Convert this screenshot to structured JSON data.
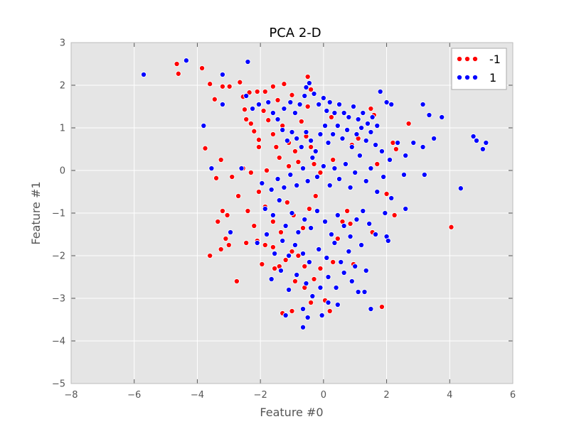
{
  "chart_data": {
    "type": "scatter",
    "title": "PCA 2-D",
    "xlabel": "Feature #0",
    "ylabel": "Feature #1",
    "xlim": [
      -8,
      6
    ],
    "ylim": [
      -5,
      3
    ],
    "xticks": [
      -8,
      -6,
      -4,
      -2,
      0,
      2,
      4,
      6
    ],
    "yticks": [
      -5,
      -4,
      -3,
      -2,
      -1,
      0,
      1,
      2,
      3
    ],
    "xtick_labels": [
      "−8",
      "−6",
      "−4",
      "−2",
      "0",
      "2",
      "4",
      "6"
    ],
    "ytick_labels": [
      "−5",
      "−4",
      "−3",
      "−2",
      "−1",
      "0",
      "1",
      "2",
      "3"
    ],
    "grid": true,
    "legend_position": "top-right",
    "background_color": "#e5e5e5",
    "series": [
      {
        "name": "-1",
        "color": "#ff0000",
        "points": [
          [
            -4.65,
            2.5
          ],
          [
            -4.6,
            2.27
          ],
          [
            -3.85,
            2.4
          ],
          [
            -3.6,
            2.03
          ],
          [
            -3.45,
            1.67
          ],
          [
            -3.2,
            1.97
          ],
          [
            -2.98,
            1.97
          ],
          [
            -2.65,
            2.07
          ],
          [
            -2.55,
            1.73
          ],
          [
            -2.35,
            1.83
          ],
          [
            -2.1,
            1.85
          ],
          [
            -1.85,
            1.85
          ],
          [
            -1.6,
            1.97
          ],
          [
            -1.45,
            1.65
          ],
          [
            -1.25,
            2.03
          ],
          [
            -1.0,
            1.77
          ],
          [
            -0.5,
            2.2
          ],
          [
            -0.4,
            1.9
          ],
          [
            -2.5,
            1.43
          ],
          [
            -2.45,
            1.2
          ],
          [
            -2.3,
            1.1
          ],
          [
            -2.2,
            0.92
          ],
          [
            -2.05,
            0.72
          ],
          [
            -1.9,
            1.4
          ],
          [
            -1.75,
            1.18
          ],
          [
            -1.6,
            0.85
          ],
          [
            -1.5,
            0.55
          ],
          [
            -1.3,
            1.05
          ],
          [
            -1.1,
            0.65
          ],
          [
            -0.9,
            0.45
          ],
          [
            -0.7,
            1.15
          ],
          [
            -0.55,
            0.8
          ],
          [
            -0.4,
            0.55
          ],
          [
            -3.75,
            0.52
          ],
          [
            -3.25,
            0.25
          ],
          [
            -3.4,
            -0.18
          ],
          [
            -2.9,
            -0.15
          ],
          [
            -2.55,
            0.05
          ],
          [
            -2.3,
            -0.05
          ],
          [
            -1.8,
            0.0
          ],
          [
            -1.4,
            0.3
          ],
          [
            -1.1,
            0.1
          ],
          [
            -0.8,
            0.2
          ],
          [
            -0.3,
            0.15
          ],
          [
            -0.1,
            -0.05
          ],
          [
            0.3,
            0.25
          ],
          [
            -2.7,
            -0.6
          ],
          [
            -2.4,
            -0.95
          ],
          [
            -2.2,
            -1.3
          ],
          [
            -2.05,
            -0.5
          ],
          [
            -1.85,
            -0.85
          ],
          [
            -1.6,
            -1.2
          ],
          [
            -1.35,
            -1.45
          ],
          [
            -1.15,
            -0.75
          ],
          [
            -0.95,
            -1.05
          ],
          [
            -0.65,
            -1.35
          ],
          [
            -0.45,
            -0.9
          ],
          [
            -0.25,
            -0.6
          ],
          [
            -3.2,
            -0.95
          ],
          [
            -3.05,
            -1.05
          ],
          [
            -3.35,
            -1.2
          ],
          [
            -3.1,
            -1.6
          ],
          [
            -3.25,
            -1.85
          ],
          [
            -3.0,
            -1.75
          ],
          [
            -3.6,
            -2.0
          ],
          [
            -2.45,
            -1.7
          ],
          [
            -2.1,
            -1.65
          ],
          [
            -1.85,
            -1.75
          ],
          [
            -1.6,
            -1.8
          ],
          [
            -1.4,
            -2.25
          ],
          [
            -1.2,
            -2.1
          ],
          [
            -1.0,
            -1.9
          ],
          [
            -0.8,
            -2.0
          ],
          [
            -0.6,
            -2.25
          ],
          [
            -2.75,
            -2.6
          ],
          [
            -1.95,
            -2.2
          ],
          [
            -1.55,
            -2.3
          ],
          [
            -1.35,
            -2.35
          ],
          [
            -0.9,
            -2.6
          ],
          [
            -0.6,
            -2.75
          ],
          [
            -0.3,
            -2.55
          ],
          [
            -0.1,
            -2.3
          ],
          [
            -1.3,
            -3.35
          ],
          [
            -1.0,
            -3.3
          ],
          [
            -0.4,
            -3.1
          ],
          [
            0.05,
            -3.05
          ],
          [
            0.2,
            -3.3
          ],
          [
            0.3,
            -2.15
          ],
          [
            0.45,
            -1.6
          ],
          [
            0.6,
            -1.2
          ],
          [
            0.75,
            -0.95
          ],
          [
            0.85,
            -1.25
          ],
          [
            0.95,
            -2.2
          ],
          [
            1.55,
            -1.45
          ],
          [
            1.85,
            -3.2
          ],
          [
            2.25,
            -1.05
          ],
          [
            2.0,
            -0.55
          ],
          [
            1.7,
            0.15
          ],
          [
            2.3,
            0.5
          ],
          [
            2.2,
            0.65
          ],
          [
            1.5,
            1.45
          ],
          [
            1.6,
            1.3
          ],
          [
            2.7,
            1.1
          ],
          [
            4.05,
            -1.33
          ],
          [
            0.9,
            0.6
          ],
          [
            1.1,
            0.75
          ],
          [
            0.25,
            1.25
          ],
          [
            -0.5,
            1.5
          ],
          [
            -2.05,
            0.55
          ]
        ]
      },
      {
        "name": "1",
        "color": "#0000ff",
        "points": [
          [
            -5.7,
            2.25
          ],
          [
            -4.35,
            2.58
          ],
          [
            -3.2,
            2.25
          ],
          [
            -2.4,
            2.55
          ],
          [
            -3.8,
            1.05
          ],
          [
            -3.55,
            0.05
          ],
          [
            -3.2,
            1.55
          ],
          [
            -2.45,
            1.75
          ],
          [
            -2.25,
            1.45
          ],
          [
            -2.05,
            1.55
          ],
          [
            -1.75,
            1.6
          ],
          [
            -1.6,
            1.35
          ],
          [
            -1.45,
            1.2
          ],
          [
            -1.25,
            1.45
          ],
          [
            -1.05,
            1.6
          ],
          [
            -0.9,
            1.35
          ],
          [
            -0.75,
            1.55
          ],
          [
            -0.6,
            1.75
          ],
          [
            -0.55,
            1.95
          ],
          [
            -0.45,
            2.05
          ],
          [
            -0.3,
            1.8
          ],
          [
            -0.15,
            1.55
          ],
          [
            0.0,
            1.7
          ],
          [
            0.1,
            1.4
          ],
          [
            0.2,
            1.6
          ],
          [
            0.35,
            1.35
          ],
          [
            0.5,
            1.55
          ],
          [
            0.65,
            1.35
          ],
          [
            0.8,
            1.25
          ],
          [
            0.95,
            1.5
          ],
          [
            1.1,
            1.2
          ],
          [
            1.25,
            1.35
          ],
          [
            1.4,
            1.1
          ],
          [
            1.55,
            1.25
          ],
          [
            1.7,
            1.05
          ],
          [
            1.8,
            1.85
          ],
          [
            2.0,
            1.6
          ],
          [
            2.15,
            1.55
          ],
          [
            3.15,
            1.55
          ],
          [
            3.35,
            1.3
          ],
          [
            3.75,
            1.25
          ],
          [
            -1.3,
            0.95
          ],
          [
            -1.15,
            0.7
          ],
          [
            -1.0,
            0.9
          ],
          [
            -0.85,
            0.75
          ],
          [
            -0.7,
            0.55
          ],
          [
            -0.55,
            0.9
          ],
          [
            -0.4,
            0.7
          ],
          [
            -0.25,
            0.45
          ],
          [
            -0.1,
            0.85
          ],
          [
            0.05,
            1.05
          ],
          [
            0.15,
            0.65
          ],
          [
            0.3,
            0.85
          ],
          [
            0.45,
            1.05
          ],
          [
            0.6,
            0.75
          ],
          [
            0.75,
            0.95
          ],
          [
            0.9,
            0.55
          ],
          [
            1.05,
            0.85
          ],
          [
            1.2,
            1.0
          ],
          [
            1.35,
            0.7
          ],
          [
            1.5,
            0.9
          ],
          [
            1.65,
            0.6
          ],
          [
            1.85,
            0.45
          ],
          [
            2.1,
            0.25
          ],
          [
            2.35,
            0.65
          ],
          [
            2.6,
            0.35
          ],
          [
            2.85,
            0.65
          ],
          [
            3.15,
            0.55
          ],
          [
            3.5,
            0.75
          ],
          [
            4.75,
            0.8
          ],
          [
            4.85,
            0.7
          ],
          [
            5.05,
            0.5
          ],
          [
            5.15,
            0.65
          ],
          [
            -2.6,
            0.05
          ],
          [
            -1.95,
            -0.3
          ],
          [
            -1.65,
            -0.45
          ],
          [
            -1.45,
            -0.2
          ],
          [
            -1.25,
            -0.4
          ],
          [
            -1.05,
            -0.1
          ],
          [
            -0.85,
            -0.35
          ],
          [
            -0.65,
            0.05
          ],
          [
            -0.5,
            -0.25
          ],
          [
            -0.35,
            0.3
          ],
          [
            -0.2,
            -0.15
          ],
          [
            0.0,
            0.1
          ],
          [
            0.2,
            -0.35
          ],
          [
            0.35,
            0.05
          ],
          [
            0.5,
            -0.2
          ],
          [
            0.7,
            0.15
          ],
          [
            0.85,
            -0.4
          ],
          [
            1.0,
            -0.05
          ],
          [
            1.15,
            0.35
          ],
          [
            1.35,
            -0.25
          ],
          [
            1.5,
            0.05
          ],
          [
            1.7,
            -0.5
          ],
          [
            1.9,
            -0.15
          ],
          [
            2.15,
            -0.65
          ],
          [
            2.55,
            -0.1
          ],
          [
            3.2,
            -0.1
          ],
          [
            4.35,
            -0.42
          ],
          [
            -1.85,
            -0.9
          ],
          [
            -1.6,
            -1.05
          ],
          [
            -1.4,
            -0.7
          ],
          [
            -1.2,
            -1.3
          ],
          [
            -1.0,
            -1.0
          ],
          [
            -0.8,
            -1.45
          ],
          [
            -0.6,
            -1.15
          ],
          [
            -0.4,
            -1.35
          ],
          [
            -0.2,
            -0.95
          ],
          [
            0.05,
            -1.2
          ],
          [
            0.25,
            -1.5
          ],
          [
            0.45,
            -1.05
          ],
          [
            0.65,
            -1.3
          ],
          [
            0.85,
            -1.55
          ],
          [
            1.05,
            -1.15
          ],
          [
            1.25,
            -0.95
          ],
          [
            1.45,
            -1.25
          ],
          [
            1.65,
            -1.5
          ],
          [
            1.95,
            -1.0
          ],
          [
            2.6,
            -0.9
          ],
          [
            -2.95,
            -1.45
          ],
          [
            -2.1,
            -1.7
          ],
          [
            -1.8,
            -1.5
          ],
          [
            -1.55,
            -1.95
          ],
          [
            -1.3,
            -1.65
          ],
          [
            -1.1,
            -2.0
          ],
          [
            -0.9,
            -1.75
          ],
          [
            -0.65,
            -1.95
          ],
          [
            -0.45,
            -2.15
          ],
          [
            -0.15,
            -1.85
          ],
          [
            0.1,
            -2.05
          ],
          [
            0.35,
            -1.7
          ],
          [
            0.55,
            -2.15
          ],
          [
            0.8,
            -1.9
          ],
          [
            1.0,
            -2.25
          ],
          [
            1.2,
            -1.75
          ],
          [
            2.0,
            -1.55
          ],
          [
            2.05,
            -1.65
          ],
          [
            -1.65,
            -2.55
          ],
          [
            -1.35,
            -2.35
          ],
          [
            -1.1,
            -2.8
          ],
          [
            -0.85,
            -2.45
          ],
          [
            -0.55,
            -2.65
          ],
          [
            -0.35,
            -2.95
          ],
          [
            -0.1,
            -2.75
          ],
          [
            0.15,
            -2.5
          ],
          [
            0.4,
            -2.75
          ],
          [
            0.65,
            -2.4
          ],
          [
            0.9,
            -2.6
          ],
          [
            1.1,
            -2.85
          ],
          [
            1.3,
            -2.85
          ],
          [
            1.35,
            -2.35
          ],
          [
            -1.2,
            -3.4
          ],
          [
            -0.65,
            -3.25
          ],
          [
            -0.5,
            -3.45
          ],
          [
            -0.05,
            -3.4
          ],
          [
            0.15,
            -3.1
          ],
          [
            0.45,
            -3.15
          ],
          [
            -0.65,
            -3.68
          ],
          [
            1.5,
            -3.25
          ]
        ]
      }
    ]
  }
}
